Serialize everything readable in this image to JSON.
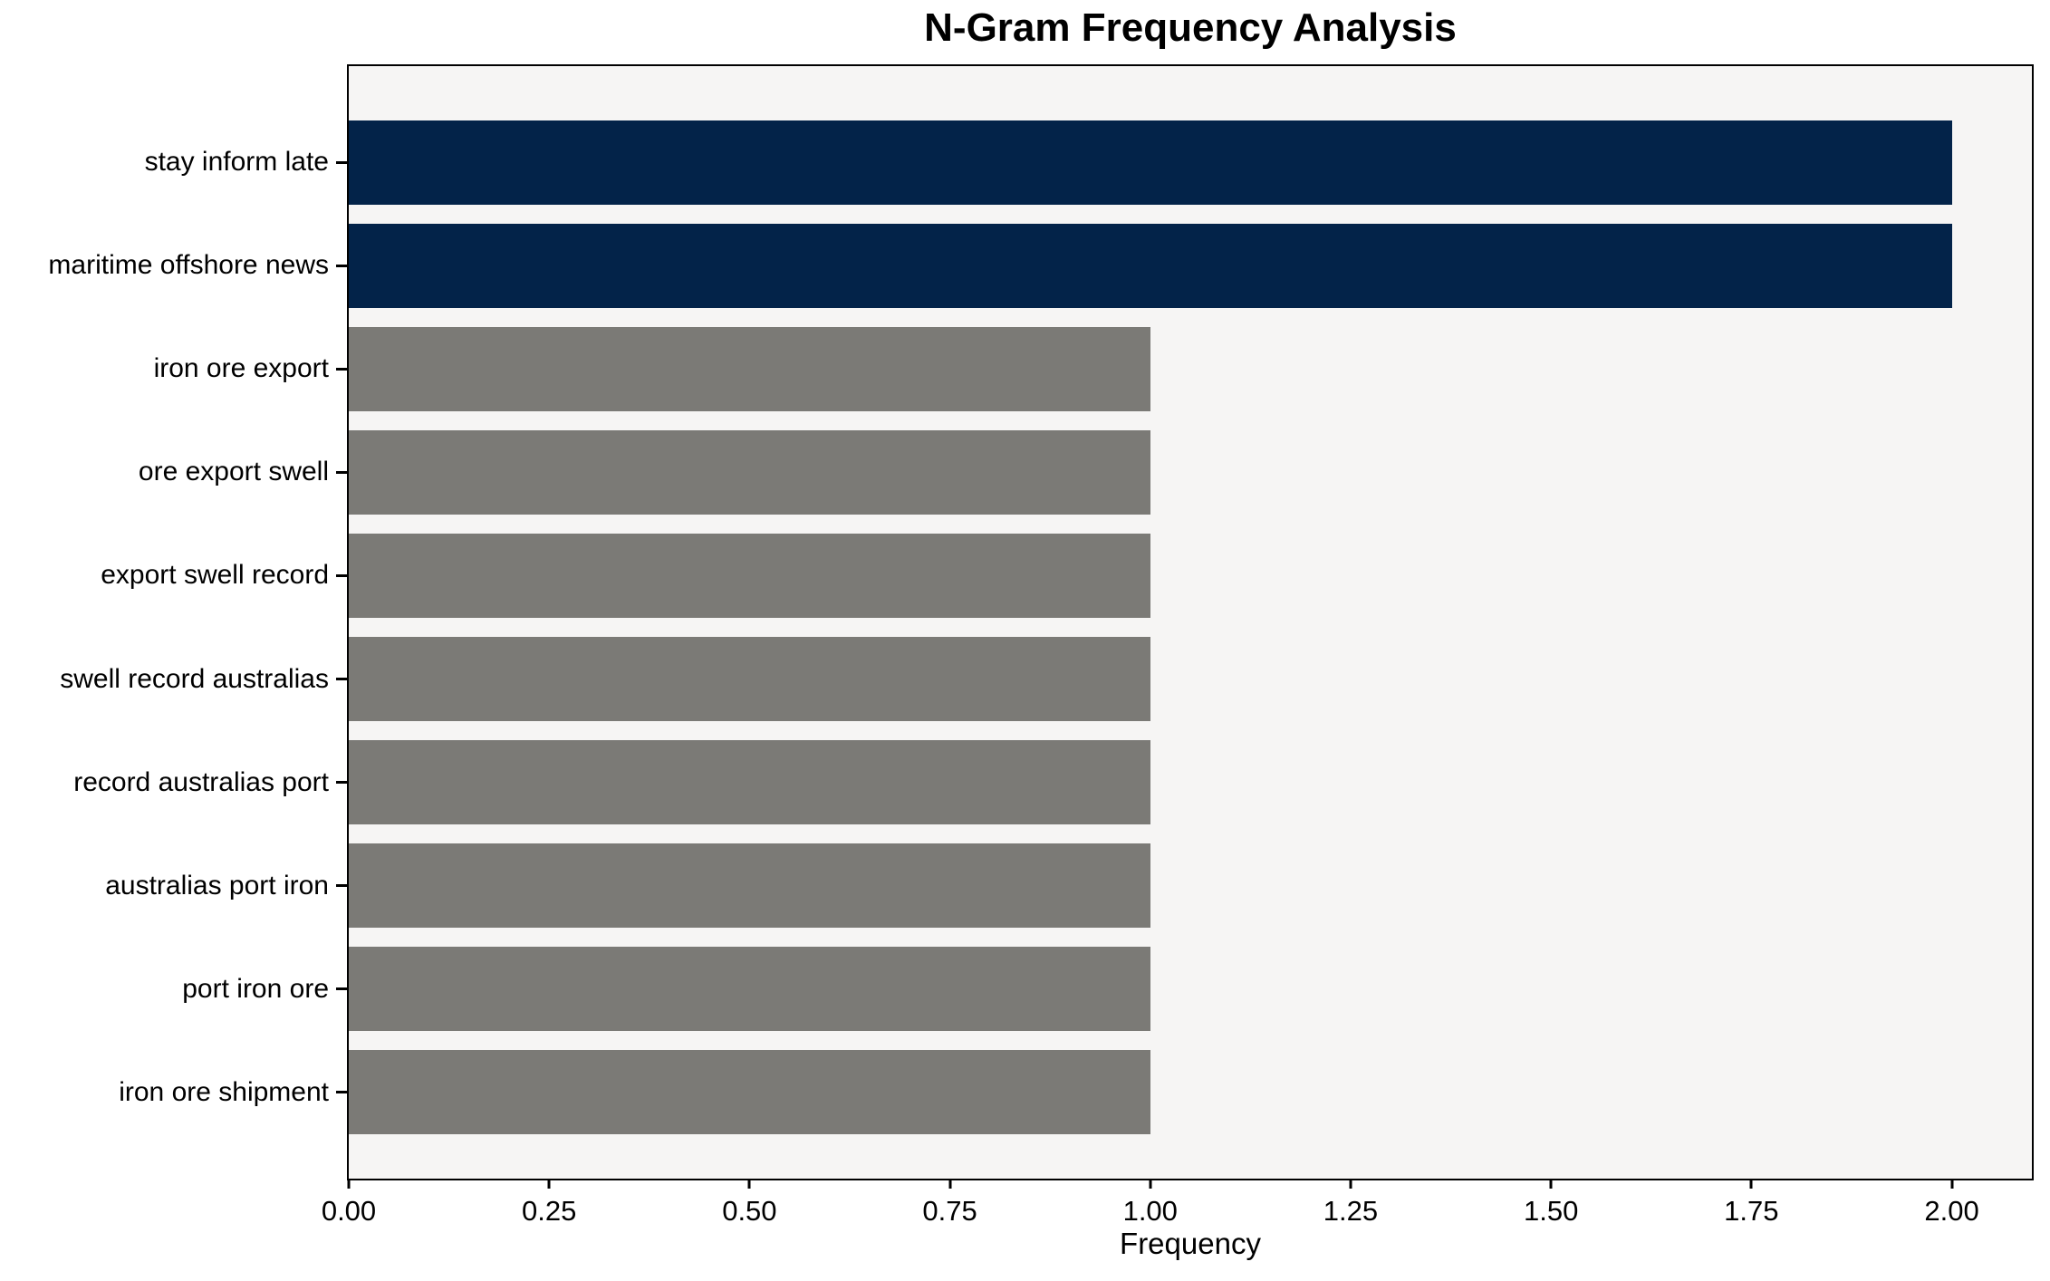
{
  "chart_data": {
    "type": "bar",
    "orientation": "horizontal",
    "title": "N-Gram Frequency Analysis",
    "xlabel": "Frequency",
    "ylabel": "",
    "categories": [
      "stay inform late",
      "maritime offshore news",
      "iron ore export",
      "ore export swell",
      "export swell record",
      "swell record australias",
      "record australias port",
      "australias port iron",
      "port iron ore",
      "iron ore shipment"
    ],
    "values": [
      2,
      2,
      1,
      1,
      1,
      1,
      1,
      1,
      1,
      1
    ],
    "bar_colors": [
      "#032349",
      "#032349",
      "#7b7a76",
      "#7b7a76",
      "#7b7a76",
      "#7b7a76",
      "#7b7a76",
      "#7b7a76",
      "#7b7a76",
      "#7b7a76"
    ],
    "xlim": [
      0,
      2.1
    ],
    "xticks": {
      "values": [
        0,
        0.25,
        0.5,
        0.75,
        1,
        1.25,
        1.5,
        1.75,
        2
      ],
      "labels": [
        "0.00",
        "0.25",
        "0.50",
        "0.75",
        "1.00",
        "1.25",
        "1.50",
        "1.75",
        "2.00"
      ]
    },
    "grid": false,
    "legend": "none",
    "colors": {
      "highlight": "#032349",
      "muted": "#7b7a76",
      "plot_bg": "#f6f5f4",
      "figure_bg": "#ffffff",
      "axis": "#000000",
      "text": "#000000"
    }
  }
}
